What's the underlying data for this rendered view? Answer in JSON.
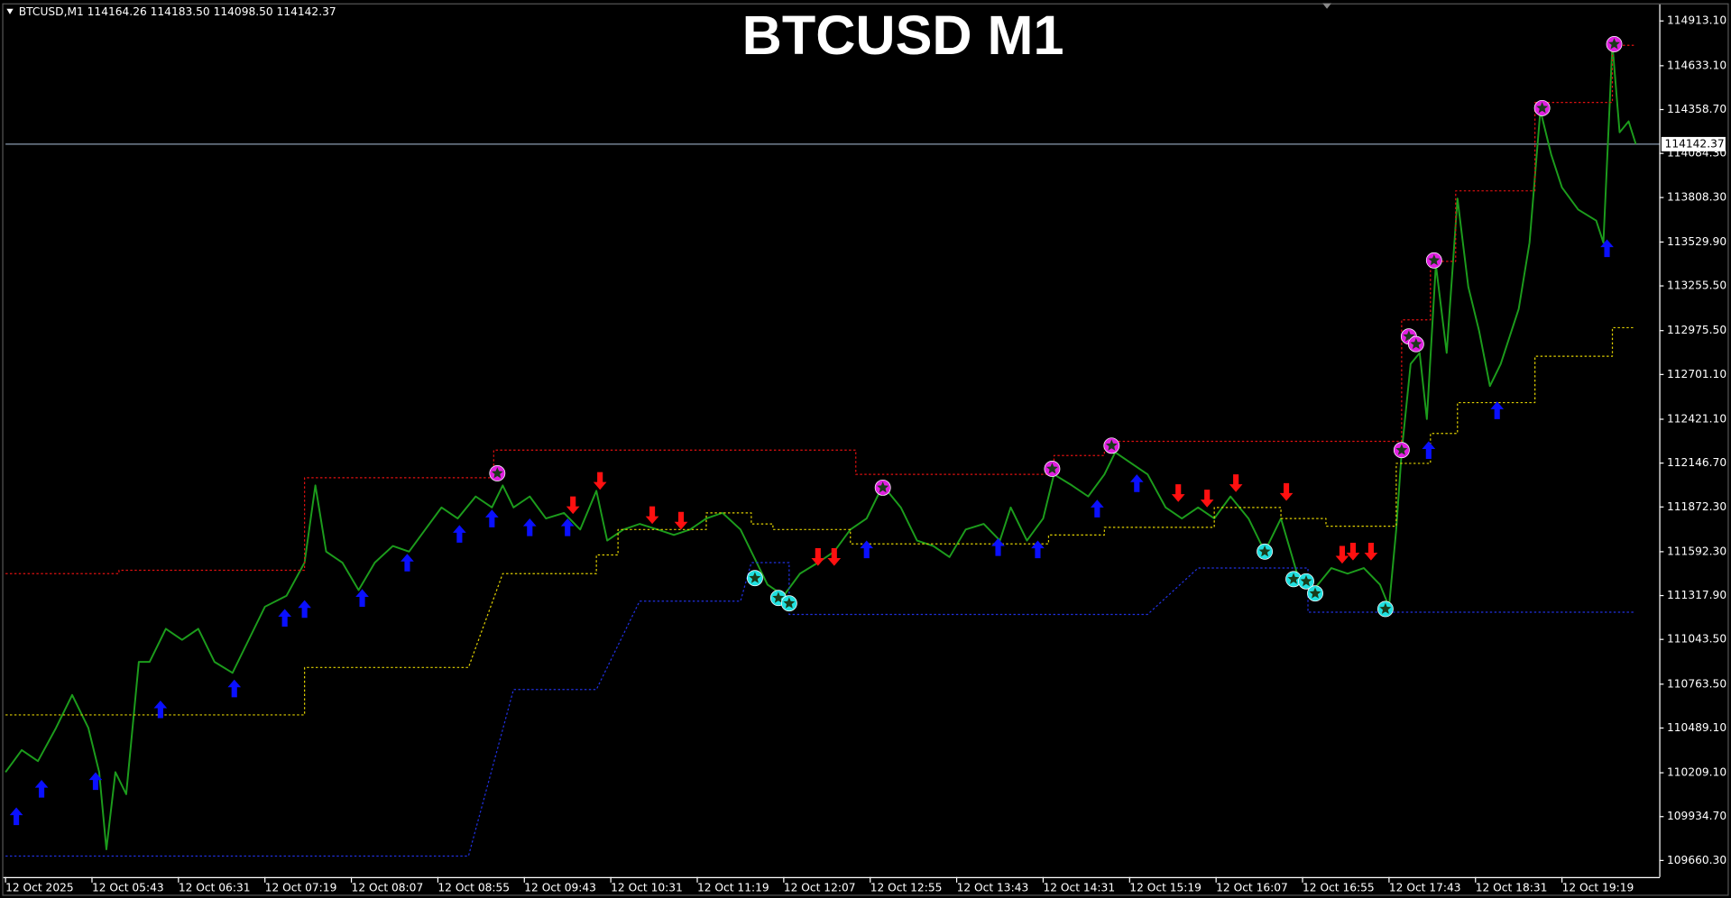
{
  "chart_data": {
    "type": "line",
    "title": "BTCUSD M1",
    "header": "BTCUSD,M1  114164.26 114183.50 114098.50 114142.37",
    "current_price": {
      "value": 114142.37,
      "label": "114142.37",
      "color": "#8a9bb0"
    },
    "xlim": [
      0,
      918
    ],
    "ylim": [
      109556.7,
      115009.7
    ],
    "xticks": [
      {
        "value": 0,
        "label": "12 Oct 2025"
      },
      {
        "value": 48,
        "label": "12 Oct 05:43"
      },
      {
        "value": 96,
        "label": "12 Oct 06:31"
      },
      {
        "value": 144,
        "label": "12 Oct 07:19"
      },
      {
        "value": 192,
        "label": "12 Oct 08:07"
      },
      {
        "value": 240,
        "label": "12 Oct 08:55"
      },
      {
        "value": 288,
        "label": "12 Oct 09:43"
      },
      {
        "value": 336,
        "label": "12 Oct 10:31"
      },
      {
        "value": 384,
        "label": "12 Oct 11:19"
      },
      {
        "value": 432,
        "label": "12 Oct 12:07"
      },
      {
        "value": 480,
        "label": "12 Oct 12:55"
      },
      {
        "value": 528,
        "label": "12 Oct 13:43"
      },
      {
        "value": 576,
        "label": "12 Oct 14:31"
      },
      {
        "value": 624,
        "label": "12 Oct 15:19"
      },
      {
        "value": 672,
        "label": "12 Oct 16:07"
      },
      {
        "value": 720,
        "label": "12 Oct 16:55"
      },
      {
        "value": 768,
        "label": "12 Oct 17:43"
      },
      {
        "value": 816,
        "label": "12 Oct 18:31"
      },
      {
        "value": 864,
        "label": "12 Oct 19:19"
      }
    ],
    "yticks": [
      {
        "value": 114913.1,
        "label": "114913.10"
      },
      {
        "value": 114633.1,
        "label": "114633.10"
      },
      {
        "value": 114358.7,
        "label": "114358.70"
      },
      {
        "value": 114084.3,
        "label": "114084.30"
      },
      {
        "value": 113808.3,
        "label": "113808.30"
      },
      {
        "value": 113529.9,
        "label": "113529.90"
      },
      {
        "value": 113255.5,
        "label": "113255.50"
      },
      {
        "value": 112975.5,
        "label": "112975.50"
      },
      {
        "value": 112701.1,
        "label": "112701.10"
      },
      {
        "value": 112421.1,
        "label": "112421.10"
      },
      {
        "value": 112146.7,
        "label": "112146.70"
      },
      {
        "value": 111872.3,
        "label": "111872.30"
      },
      {
        "value": 111592.3,
        "label": "111592.30"
      },
      {
        "value": 111317.9,
        "label": "111317.90"
      },
      {
        "value": 111043.5,
        "label": "111043.50"
      },
      {
        "value": 110763.5,
        "label": "110763.50"
      },
      {
        "value": 110489.1,
        "label": "110489.10"
      },
      {
        "value": 110209.1,
        "label": "110209.10"
      },
      {
        "value": 109934.7,
        "label": "109934.70"
      },
      {
        "value": 109660.3,
        "label": "109660.30"
      }
    ],
    "series": [
      {
        "color": "#1c9c1c",
        "style": "solid",
        "x": [
          0,
          9,
          18,
          28,
          37,
          46,
          52,
          56,
          61,
          67,
          74,
          80,
          89,
          98,
          107,
          116,
          126,
          135,
          144,
          156,
          166,
          172,
          178,
          187,
          196,
          205,
          215,
          224,
          233,
          242,
          251,
          261,
          270,
          276,
          282,
          291,
          300,
          310,
          319,
          328,
          334,
          343,
          352,
          362,
          371,
          380,
          389,
          398,
          408,
          414,
          423,
          432,
          441,
          451,
          460,
          469,
          478,
          487,
          497,
          506,
          515,
          524,
          533,
          543,
          552,
          558,
          567,
          576,
          582,
          592,
          601,
          610,
          616,
          625,
          634,
          644,
          653,
          662,
          671,
          680,
          690,
          699,
          708,
          717,
          726,
          736,
          745,
          754,
          763,
          768,
          772,
          775,
          780,
          785,
          789,
          794,
          800,
          806,
          812,
          818,
          824,
          830,
          840,
          846,
          852,
          858,
          864,
          873,
          883,
          887,
          892,
          896,
          901,
          905
        ],
        "values": [
          110213,
          110351,
          110282,
          110489,
          110696,
          110489,
          110213,
          109730,
          110213,
          110075,
          110903,
          110903,
          111110,
          111041,
          111110,
          110903,
          110834,
          111041,
          111248,
          111317,
          111524,
          112007,
          111593,
          111524,
          111352,
          111524,
          111628,
          111593,
          111731,
          111869,
          111800,
          111938,
          111869,
          112007,
          111869,
          111938,
          111800,
          111835,
          111731,
          111973,
          111662,
          111731,
          111766,
          111731,
          111697,
          111731,
          111800,
          111835,
          111731,
          111593,
          111386,
          111317,
          111455,
          111524,
          111593,
          111731,
          111800,
          112007,
          111869,
          111662,
          111628,
          111559,
          111731,
          111766,
          111662,
          111869,
          111662,
          111800,
          112076,
          112007,
          111938,
          112076,
          112214,
          112145,
          112076,
          111869,
          111800,
          111869,
          111800,
          111938,
          111800,
          111593,
          111800,
          111455,
          111352,
          111490,
          111455,
          111490,
          111386,
          111248,
          111731,
          112214,
          112767,
          112836,
          112422,
          113388,
          112836,
          113802,
          113250,
          112974,
          112629,
          112767,
          113112,
          113526,
          114354,
          114078,
          113871,
          113733,
          113664,
          113526,
          114768,
          114216,
          114285,
          114142.37
        ]
      },
      {
        "color": "#e01010",
        "style": "dotted",
        "x": [
          0,
          63,
          63,
          166,
          166,
          271,
          271,
          472,
          472,
          582,
          582,
          610,
          610,
          775,
          775,
          791,
          791,
          805,
          805,
          849,
          849,
          892,
          892,
          904
        ],
        "values": [
          111455,
          111455,
          111476,
          111476,
          112055,
          112055,
          112228,
          112228,
          112076,
          112076,
          112194,
          112194,
          112283,
          112283,
          113043,
          113043,
          113409,
          113409,
          113850,
          113850,
          114403,
          114403,
          114761,
          114761
        ]
      },
      {
        "color": "#e0d000",
        "style": "dotted",
        "x": [
          0,
          166,
          166,
          257,
          276,
          328,
          328,
          340,
          340,
          389,
          389,
          414,
          414,
          426,
          426,
          469,
          469,
          579,
          579,
          610,
          610,
          671,
          671,
          708,
          708,
          733,
          733,
          772,
          772,
          791,
          791,
          806,
          806,
          849,
          849,
          892,
          892,
          904
        ],
        "values": [
          110571,
          110571,
          110868,
          110868,
          111455,
          111455,
          111572,
          111572,
          111731,
          111731,
          111835,
          111835,
          111766,
          111766,
          111731,
          111731,
          111641,
          111641,
          111697,
          111697,
          111745,
          111745,
          111869,
          111869,
          111800,
          111800,
          111752,
          111752,
          112145,
          112145,
          112332,
          112332,
          112525,
          112525,
          112815,
          112815,
          112994,
          112994
        ]
      },
      {
        "color": "#2030e0",
        "style": "dotted",
        "x": [
          0,
          257,
          282,
          328,
          352,
          408,
          414,
          435,
          435,
          634,
          662,
          723,
          723,
          904
        ],
        "values": [
          109688,
          109688,
          110730,
          110730,
          111283,
          111283,
          111524,
          111524,
          111200,
          111200,
          111490,
          111490,
          111214,
          111214
        ]
      }
    ],
    "markers": [
      {
        "marker": "arrow-up",
        "color": "#0a10ff",
        "x": [
          6,
          20,
          50,
          86,
          127,
          155,
          166,
          198,
          223,
          252,
          270,
          291,
          312,
          478,
          551,
          573,
          606,
          628,
          790,
          828,
          889
        ],
        "values": [
          109937,
          110109,
          110157,
          110606,
          110737,
          111179,
          111234,
          111303,
          111524,
          111704,
          111800,
          111745,
          111745,
          111607,
          111621,
          111607,
          111862,
          112021,
          112228,
          112477,
          113491
        ]
      },
      {
        "marker": "arrow-down",
        "color": "#ff1010",
        "x": [
          315,
          330,
          359,
          375,
          451,
          460,
          651,
          667,
          683,
          711,
          742,
          748,
          758
        ],
        "values": [
          111883,
          112035,
          111821,
          111786,
          111559,
          111559,
          111959,
          111925,
          112021,
          111966,
          111573,
          111593,
          111593
        ]
      },
      {
        "marker": "star-circle",
        "color": "#e020e0",
        "x": [
          273,
          487,
          581,
          614,
          775,
          779,
          783,
          793,
          853,
          893
        ],
        "values": [
          112083,
          111993,
          112111,
          112256,
          112228,
          112939,
          112891,
          113415,
          114368,
          114768
        ]
      },
      {
        "marker": "star-circle",
        "color": "#20e0e0",
        "x": [
          416,
          429,
          435,
          699,
          715,
          722,
          727,
          766
        ],
        "values": [
          111427,
          111303,
          111269,
          111593,
          111421,
          111407,
          111331,
          111234
        ]
      }
    ]
  }
}
